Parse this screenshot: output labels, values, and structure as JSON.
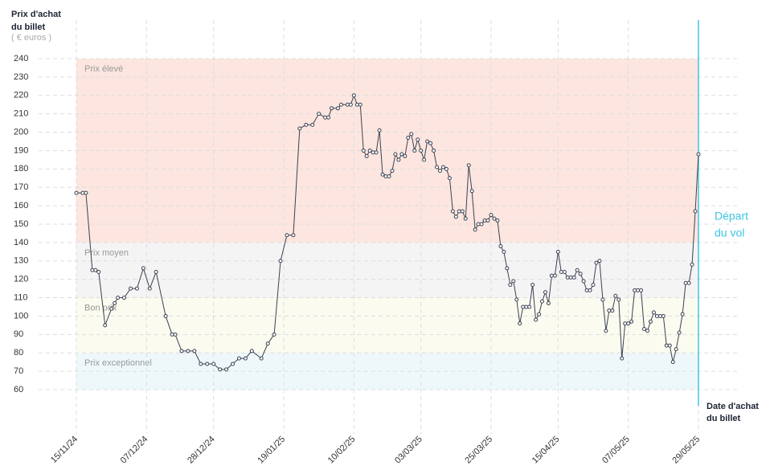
{
  "chart_data": {
    "type": "line",
    "y_label": [
      "Prix d'achat",
      "du billet"
    ],
    "y_unit": "( € euros )",
    "x_label": [
      "Date d'achat",
      "du billet"
    ],
    "departure_label": [
      "Départ",
      "du vol"
    ],
    "color": "#3b4150",
    "departure_color": "#3ec6e0",
    "bands": [
      {
        "label": "Prix élevé",
        "range": [
          140,
          240
        ],
        "color": "#fde6e0"
      },
      {
        "label": "Prix moyen",
        "range": [
          110,
          140
        ],
        "color": "#f4f4f5"
      },
      {
        "label": "Bon prix",
        "range": [
          80,
          110
        ],
        "color": "#fbfbf0"
      },
      {
        "label": "Prix exceptionnel",
        "range": [
          60,
          80
        ],
        "color": "#eef8fb"
      }
    ],
    "x": [
      0,
      2,
      3,
      5,
      6,
      7,
      9,
      11,
      12,
      13,
      15,
      17,
      19,
      21,
      23,
      25,
      28,
      30,
      31,
      33,
      35,
      37,
      39,
      41,
      43,
      45,
      47,
      49,
      51,
      53,
      55,
      58,
      60,
      62,
      64,
      66,
      68,
      70,
      72,
      74,
      76,
      78,
      79,
      80,
      82,
      83,
      85,
      86,
      87,
      88,
      89,
      90,
      91,
      92,
      93,
      94,
      95,
      96,
      97,
      98,
      99,
      100,
      101,
      102,
      103,
      104,
      105,
      106,
      107,
      108,
      109,
      110,
      111,
      112,
      113,
      114,
      115,
      116,
      117,
      118,
      119,
      120,
      121,
      122,
      123,
      124,
      125,
      126,
      127,
      128,
      129,
      130,
      131,
      132,
      133,
      134,
      135,
      136,
      137,
      138,
      139,
      140,
      141,
      142,
      143,
      144,
      145,
      146,
      147,
      148,
      149,
      150,
      151,
      152,
      153,
      154,
      155,
      156,
      157,
      158,
      159,
      160,
      161,
      162,
      163,
      164,
      165,
      166,
      167,
      168,
      169,
      170,
      171,
      172,
      173,
      174,
      175,
      176,
      177,
      178,
      179,
      180,
      181,
      182,
      183,
      184,
      185,
      186,
      187,
      188,
      189,
      190,
      191,
      192,
      193,
      194,
      195
    ],
    "values": [
      167,
      167,
      167,
      125,
      125,
      124,
      95,
      104,
      107,
      110,
      110,
      115,
      115,
      126,
      115,
      124,
      100,
      90,
      90,
      81,
      81,
      81,
      74,
      74,
      74,
      71,
      71,
      74,
      77,
      77,
      81,
      77,
      85,
      90,
      130,
      144,
      144,
      202,
      204,
      204,
      210,
      208,
      208,
      213,
      213,
      215,
      215,
      215,
      220,
      215,
      215,
      190,
      187,
      190,
      189,
      189,
      201,
      177,
      176,
      176,
      179,
      188,
      185,
      188,
      187,
      197,
      199,
      190,
      196,
      190,
      185,
      195,
      194,
      190,
      181,
      179,
      181,
      180,
      175,
      157,
      154,
      157,
      157,
      153,
      182,
      168,
      147,
      150,
      150,
      152,
      152,
      155,
      153,
      152,
      138,
      135,
      126,
      117,
      119,
      109,
      96,
      105,
      105,
      105,
      117,
      98,
      101,
      108,
      113,
      107,
      122,
      122,
      135,
      124,
      124,
      121,
      121,
      121,
      125,
      123,
      119,
      114,
      114,
      117,
      129,
      130,
      109,
      92,
      103,
      103,
      111,
      109,
      77,
      96,
      96,
      97,
      114,
      114,
      114,
      93,
      92,
      97,
      102,
      100,
      100,
      100,
      84,
      84,
      75,
      82,
      91,
      101,
      118,
      118,
      128,
      157,
      188
    ],
    "xlim": [
      0,
      195
    ],
    "xticks": [
      {
        "value": 0,
        "label": "15/11/24"
      },
      {
        "value": 22,
        "label": "07/12/24"
      },
      {
        "value": 43,
        "label": "28/12/24"
      },
      {
        "value": 65,
        "label": "19/01/25"
      },
      {
        "value": 87,
        "label": "10/02/25"
      },
      {
        "value": 108,
        "label": "03/03/25"
      },
      {
        "value": 130,
        "label": "25/03/25"
      },
      {
        "value": 151,
        "label": "15/04/25"
      },
      {
        "value": 173,
        "label": "07/05/25"
      },
      {
        "value": 195,
        "label": "29/05/25"
      }
    ],
    "ylim": [
      60,
      240
    ],
    "yticks": [
      60,
      70,
      80,
      90,
      100,
      110,
      120,
      130,
      140,
      150,
      160,
      170,
      180,
      190,
      200,
      210,
      220,
      230,
      240
    ],
    "grid": true
  }
}
